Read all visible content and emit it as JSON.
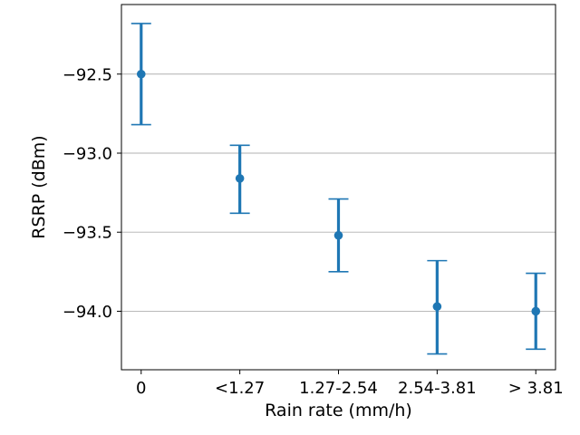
{
  "chart_data": {
    "type": "scatter",
    "title": "",
    "xlabel": "Rain rate (mm/h)",
    "ylabel": "RSRP (dBm)",
    "categories": [
      "0",
      "<1.27",
      "1.27-2.54",
      "2.54-3.81",
      "> 3.81"
    ],
    "series": [
      {
        "values": [
          -92.5,
          -93.16,
          -93.52,
          -93.97,
          -94.0
        ],
        "err_upper": [
          -92.18,
          -92.95,
          -93.29,
          -93.68,
          -93.76
        ],
        "err_lower": [
          -92.82,
          -93.38,
          -93.75,
          -94.27,
          -94.24
        ]
      }
    ],
    "ylim": [
      -94.37,
      -92.06
    ],
    "yticks": [
      -92.5,
      -93.0,
      -93.5,
      -94.0
    ],
    "ytick_labels": [
      "−92.5",
      "−93.0",
      "−93.5",
      "−94.0"
    ],
    "grid": "y-major",
    "legend": "none",
    "colors": {
      "series": "#1f77b4",
      "grid": "#b0b0b0",
      "axis": "#000000"
    }
  }
}
